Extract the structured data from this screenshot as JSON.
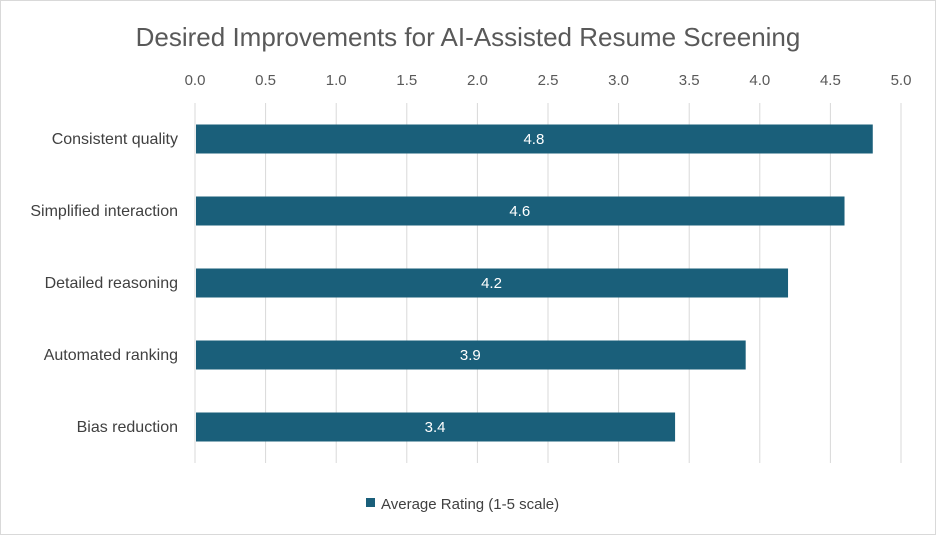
{
  "chart_data": {
    "type": "bar",
    "orientation": "horizontal",
    "title": "Desired Improvements for AI-Assisted Resume Screening",
    "categories": [
      "Consistent quality",
      "Simplified interaction",
      "Detailed reasoning",
      "Automated ranking",
      "Bias reduction"
    ],
    "series": [
      {
        "name": "Average Rating (1-5 scale)",
        "values": [
          4.8,
          4.6,
          4.2,
          3.9,
          3.4
        ],
        "color": "#1a5f7a"
      }
    ],
    "xlim": [
      0,
      5
    ],
    "x_ticks": [
      "0.0",
      "0.5",
      "1.0",
      "1.5",
      "2.0",
      "2.5",
      "3.0",
      "3.5",
      "4.0",
      "4.5",
      "5.0"
    ],
    "x_axis_position": "top",
    "grid": true,
    "legend_position": "bottom",
    "data_labels": [
      "4.8",
      "4.6",
      "4.2",
      "3.9",
      "3.4"
    ]
  }
}
